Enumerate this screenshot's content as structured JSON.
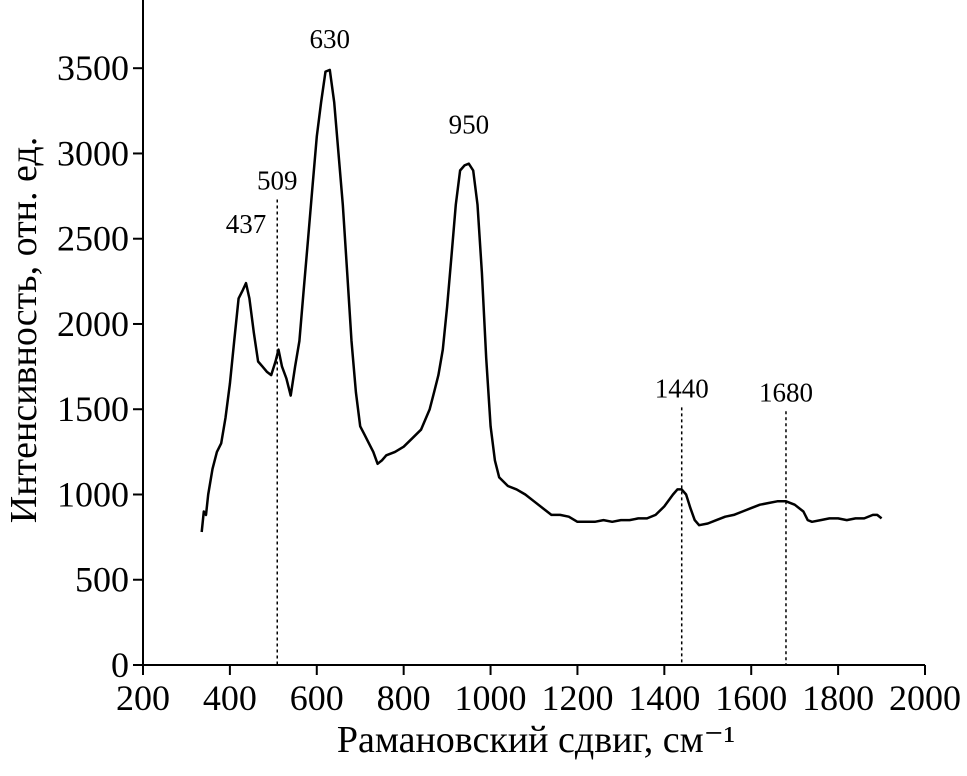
{
  "chart_data": {
    "type": "line",
    "x_label": "Рамановский сдвиг, см⁻¹",
    "y_label": "Интенсивность, отн. ед.",
    "color": "#000000",
    "x": [
      335,
      340,
      345,
      350,
      360,
      370,
      380,
      390,
      400,
      410,
      420,
      430,
      437,
      445,
      455,
      465,
      475,
      485,
      495,
      505,
      512,
      520,
      530,
      540,
      550,
      560,
      570,
      580,
      590,
      600,
      610,
      620,
      630,
      640,
      650,
      660,
      670,
      680,
      690,
      700,
      710,
      720,
      730,
      740,
      750,
      760,
      780,
      800,
      820,
      840,
      860,
      870,
      880,
      890,
      900,
      910,
      920,
      930,
      940,
      950,
      960,
      970,
      980,
      990,
      1000,
      1010,
      1020,
      1040,
      1060,
      1080,
      1100,
      1120,
      1140,
      1160,
      1180,
      1200,
      1220,
      1240,
      1260,
      1280,
      1300,
      1320,
      1340,
      1360,
      1380,
      1400,
      1420,
      1430,
      1440,
      1450,
      1460,
      1470,
      1480,
      1500,
      1520,
      1540,
      1560,
      1580,
      1600,
      1620,
      1640,
      1660,
      1680,
      1700,
      1720,
      1730,
      1740,
      1760,
      1780,
      1800,
      1820,
      1840,
      1860,
      1880,
      1890,
      1900
    ],
    "values": [
      780,
      900,
      880,
      1000,
      1150,
      1250,
      1300,
      1450,
      1650,
      1900,
      2150,
      2200,
      2240,
      2150,
      1950,
      1780,
      1750,
      1720,
      1700,
      1780,
      1850,
      1750,
      1680,
      1580,
      1750,
      1900,
      2200,
      2500,
      2800,
      3100,
      3300,
      3480,
      3490,
      3300,
      3000,
      2700,
      2300,
      1900,
      1600,
      1400,
      1350,
      1300,
      1250,
      1180,
      1200,
      1230,
      1250,
      1280,
      1330,
      1380,
      1500,
      1600,
      1700,
      1850,
      2100,
      2400,
      2700,
      2900,
      2930,
      2940,
      2900,
      2700,
      2300,
      1800,
      1400,
      1200,
      1100,
      1050,
      1030,
      1000,
      960,
      920,
      880,
      880,
      870,
      840,
      840,
      840,
      850,
      840,
      850,
      850,
      860,
      860,
      880,
      930,
      1000,
      1030,
      1030,
      1000,
      920,
      850,
      820,
      830,
      850,
      870,
      880,
      900,
      920,
      940,
      950,
      960,
      960,
      940,
      900,
      850,
      840,
      850,
      860,
      860,
      850,
      860,
      860,
      880,
      880,
      860
    ],
    "annotations": [
      {
        "text": "437",
        "x": 437,
        "dashed": false
      },
      {
        "text": "509",
        "x": 509,
        "dashed": true
      },
      {
        "text": "630",
        "x": 630,
        "dashed": false
      },
      {
        "text": "950",
        "x": 950,
        "dashed": false
      },
      {
        "text": "1440",
        "x": 1440,
        "dashed": true
      },
      {
        "text": "1680",
        "x": 1680,
        "dashed": true
      }
    ],
    "xlim": [
      200,
      2000
    ],
    "xticks": [
      200,
      400,
      600,
      800,
      1000,
      1200,
      1400,
      1600,
      1800,
      2000
    ],
    "ylim": [
      0,
      3900
    ],
    "yticks": [
      0,
      500,
      1000,
      1500,
      2000,
      2500,
      3000,
      3500
    ]
  }
}
